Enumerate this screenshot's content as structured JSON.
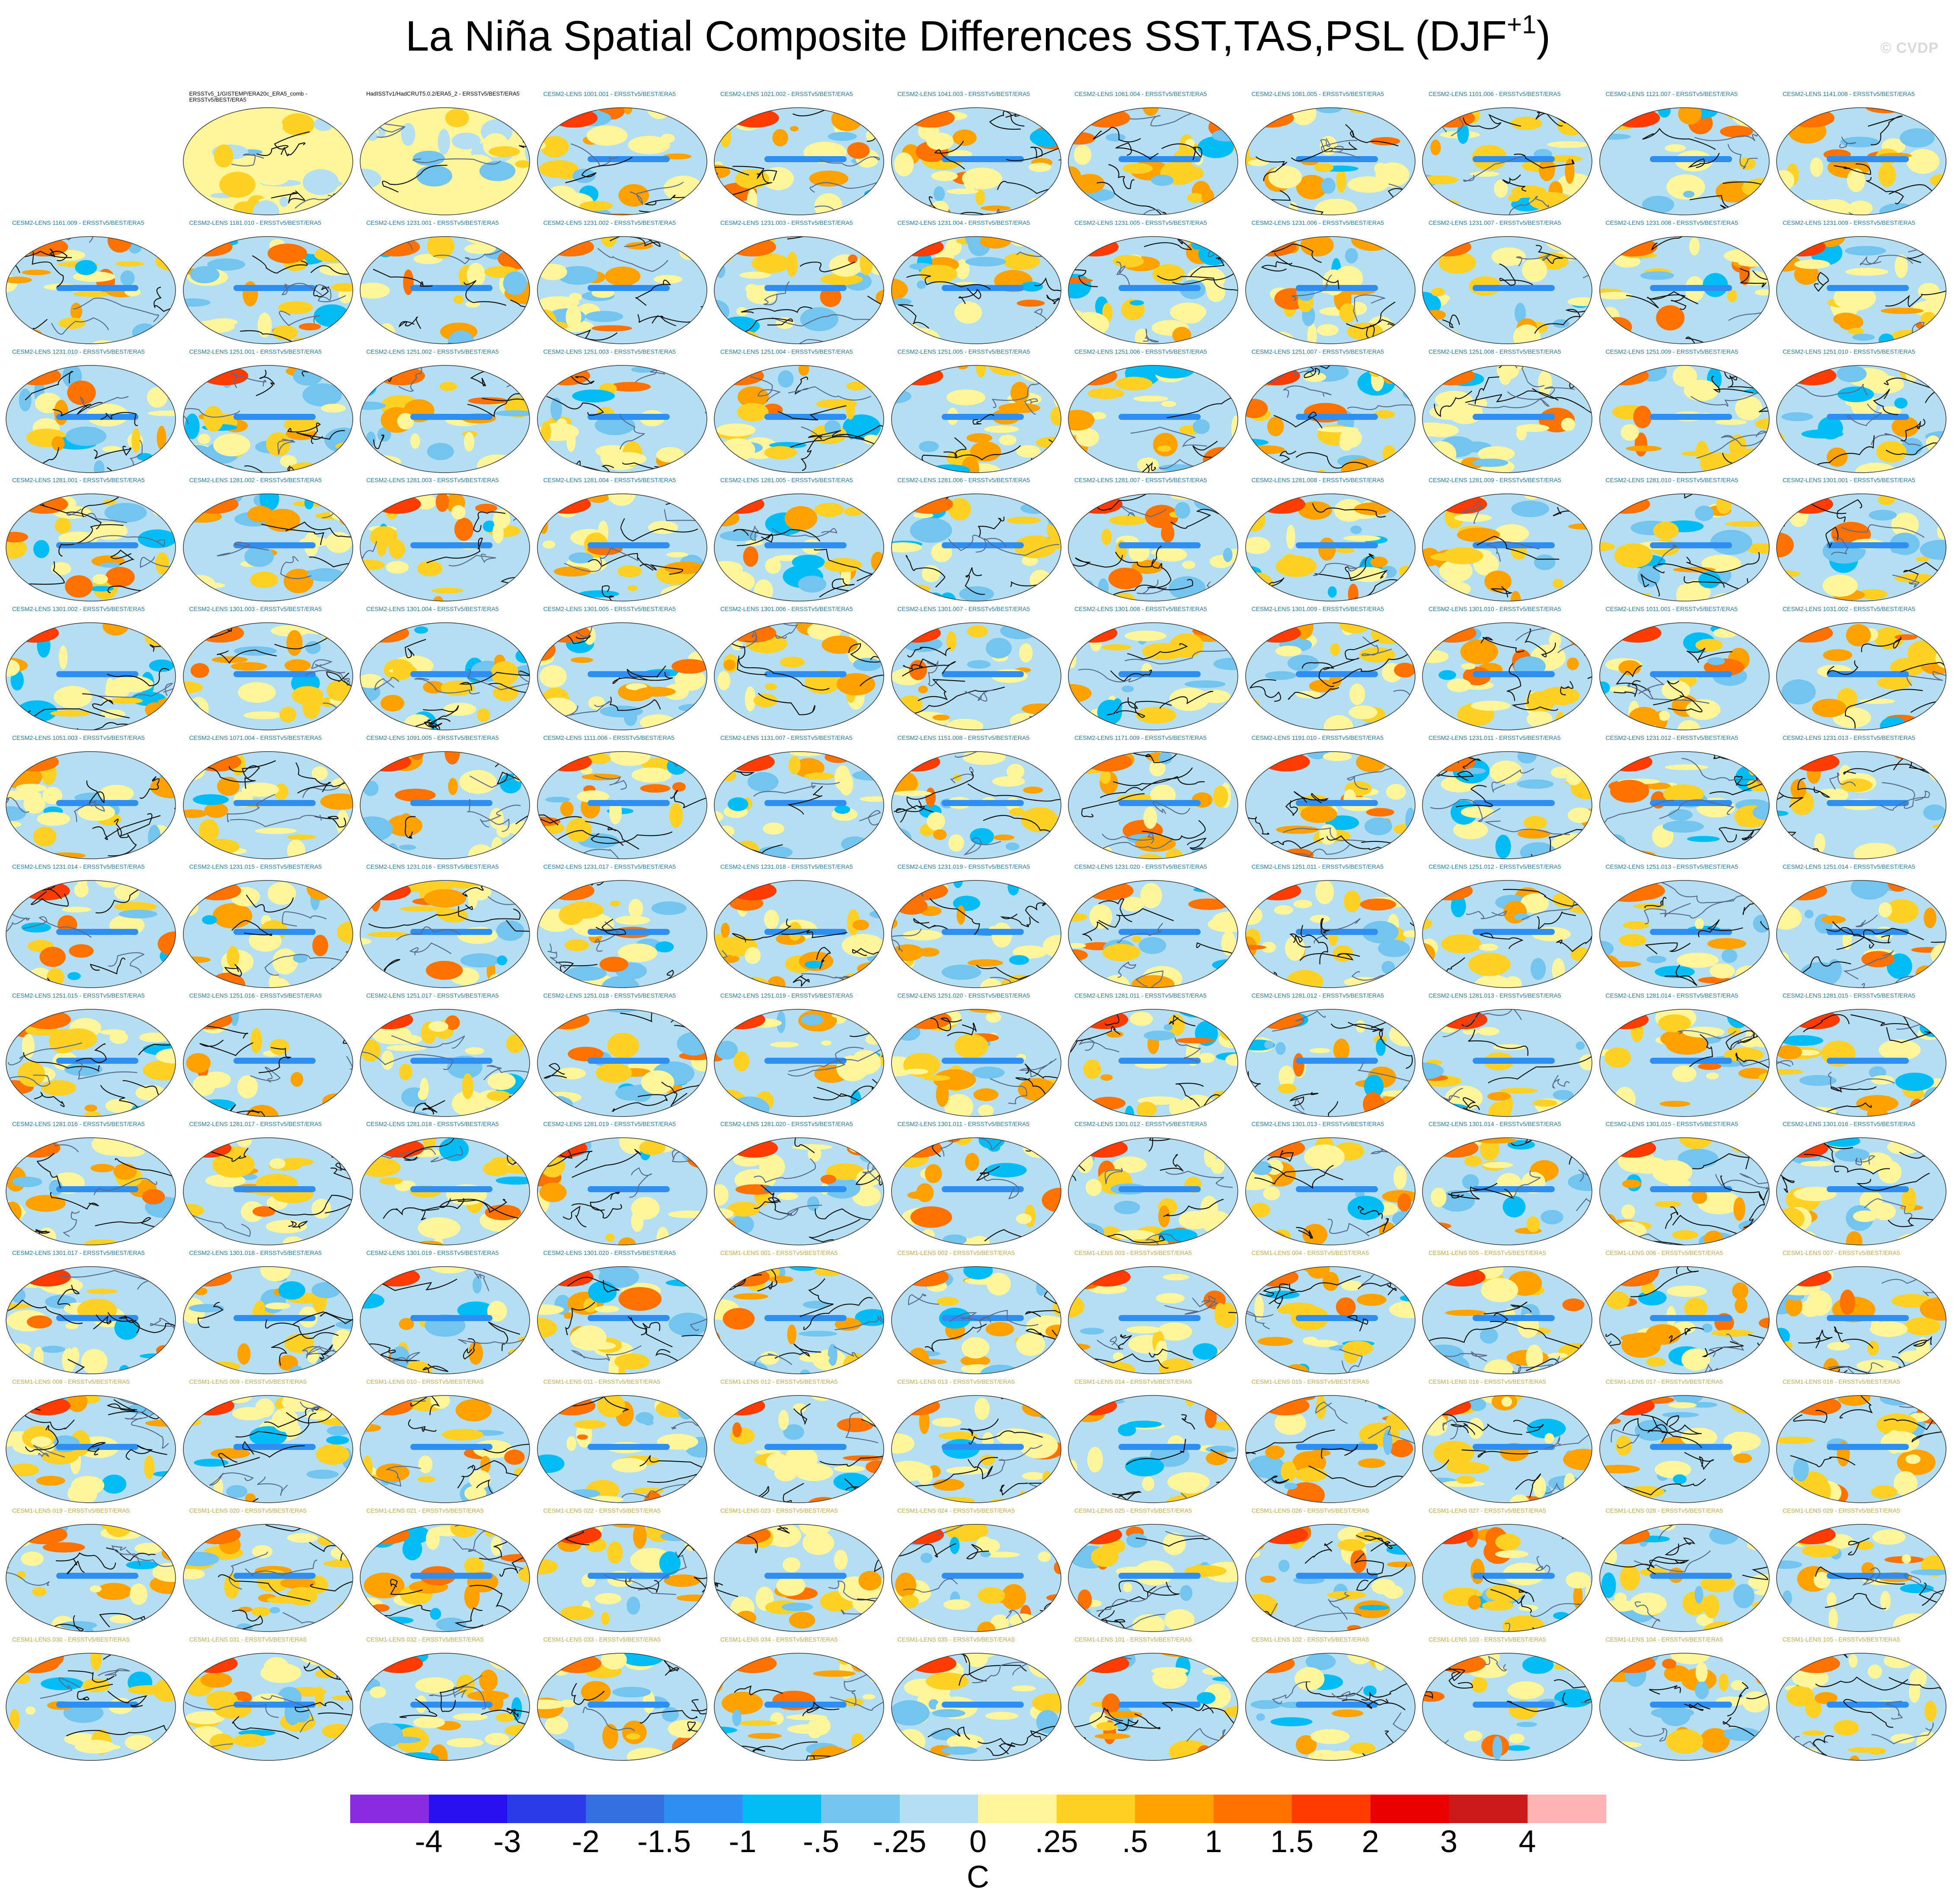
{
  "chart_data": {
    "type": "heatmap",
    "title": "La Niña Spatial Composite Differences SST,TAS,PSL (DJF",
    "title_superscript": "+1",
    "title_suffix": ")",
    "watermark": "© CVDP",
    "description_of_panels": "Grid of global map composites (11 columns x 13 rows), shaded SST/TAS differences with PSL contours",
    "panel_titles": [
      "ERSSTv5_1/GISTEMP/ERA20c_ERA5_comb - ERSSTv5/BEST/ERA5",
      "HadISSTv1/HadCRUT5.0.2/ERA5_2 - ERSSTv5/BEST/ERA5",
      "CESM2-LENS 1001.001 - ERSSTv5/BEST/ERA5",
      "CESM2-LENS 1021.002 - ERSSTv5/BEST/ERA5",
      "CESM2-LENS 1041.003 - ERSSTv5/BEST/ERA5",
      "CESM2-LENS 1061.004 - ERSSTv5/BEST/ERA5",
      "CESM2-LENS 1081.005 - ERSSTv5/BEST/ERA5",
      "CESM2-LENS 1101.006 - ERSSTv5/BEST/ERA5",
      "CESM2-LENS 1121.007 - ERSSTv5/BEST/ERA5",
      "CESM2-LENS 1141.008 - ERSSTv5/BEST/ERA5",
      "CESM2-LENS 1161.009 - ERSSTv5/BEST/ERA5",
      "CESM2-LENS 1181.010 - ERSSTv5/BEST/ERA5",
      "CESM2-LENS 1231.001 - ERSSTv5/BEST/ERA5",
      "CESM2-LENS 1231.002 - ERSSTv5/BEST/ERA5",
      "CESM2-LENS 1231.003 - ERSSTv5/BEST/ERA5",
      "CESM2-LENS 1231.004 - ERSSTv5/BEST/ERA5",
      "CESM2-LENS 1231.005 - ERSSTv5/BEST/ERA5",
      "CESM2-LENS 1231.006 - ERSSTv5/BEST/ERA5",
      "CESM2-LENS 1231.007 - ERSSTv5/BEST/ERA5",
      "CESM2-LENS 1231.008 - ERSSTv5/BEST/ERA5",
      "CESM2-LENS 1231.009 - ERSSTv5/BEST/ERA5",
      "CESM2-LENS 1231.010 - ERSSTv5/BEST/ERA5",
      "CESM2-LENS 1251.001 - ERSSTv5/BEST/ERA5",
      "CESM2-LENS 1251.002 - ERSSTv5/BEST/ERA5",
      "CESM2-LENS 1251.003 - ERSSTv5/BEST/ERA5",
      "CESM2-LENS 1251.004 - ERSSTv5/BEST/ERA5",
      "CESM2-LENS 1251.005 - ERSSTv5/BEST/ERA5",
      "CESM2-LENS 1251.006 - ERSSTv5/BEST/ERA5",
      "CESM2-LENS 1251.007 - ERSSTv5/BEST/ERA5",
      "CESM2-LENS 1251.008 - ERSSTv5/BEST/ERA5",
      "CESM2-LENS 1251.009 - ERSSTv5/BEST/ERA5",
      "CESM2-LENS 1251.010 - ERSSTv5/BEST/ERA5",
      "CESM2-LENS 1281.001 - ERSSTv5/BEST/ERA5",
      "CESM2-LENS 1281.002 - ERSSTv5/BEST/ERA5",
      "CESM2-LENS 1281.003 - ERSSTv5/BEST/ERA5",
      "CESM2-LENS 1281.004 - ERSSTv5/BEST/ERA5",
      "CESM2-LENS 1281.005 - ERSSTv5/BEST/ERA5",
      "CESM2-LENS 1281.006 - ERSSTv5/BEST/ERA5",
      "CESM2-LENS 1281.007 - ERSSTv5/BEST/ERA5",
      "CESM2-LENS 1281.008 - ERSSTv5/BEST/ERA5",
      "CESM2-LENS 1281.009 - ERSSTv5/BEST/ERA5",
      "CESM2-LENS 1281.010 - ERSSTv5/BEST/ERA5",
      "CESM2-LENS 1301.001 - ERSSTv5/BEST/ERA5",
      "CESM2-LENS 1301.002 - ERSSTv5/BEST/ERA5",
      "CESM2-LENS 1301.003 - ERSSTv5/BEST/ERA5",
      "CESM2-LENS 1301.004 - ERSSTv5/BEST/ERA5",
      "CESM2-LENS 1301.005 - ERSSTv5/BEST/ERA5",
      "CESM2-LENS 1301.006 - ERSSTv5/BEST/ERA5",
      "CESM2-LENS 1301.007 - ERSSTv5/BEST/ERA5",
      "CESM2-LENS 1301.008 - ERSSTv5/BEST/ERA5",
      "CESM2-LENS 1301.009 - ERSSTv5/BEST/ERA5",
      "CESM2-LENS 1301.010 - ERSSTv5/BEST/ERA5",
      "CESM2-LENS 1011.001 - ERSSTv5/BEST/ERA5",
      "CESM2-LENS 1031.002 - ERSSTv5/BEST/ERA5",
      "CESM2-LENS 1051.003 - ERSSTv5/BEST/ERA5",
      "CESM2-LENS 1071.004 - ERSSTv5/BEST/ERA5",
      "CESM2-LENS 1091.005 - ERSSTv5/BEST/ERA5",
      "CESM2-LENS 1111.006 - ERSSTv5/BEST/ERA5",
      "CESM2-LENS 1131.007 - ERSSTv5/BEST/ERA5",
      "CESM2-LENS 1151.008 - ERSSTv5/BEST/ERA5",
      "CESM2-LENS 1171.009 - ERSSTv5/BEST/ERA5",
      "CESM2-LENS 1191.010 - ERSSTv5/BEST/ERA5",
      "CESM2-LENS 1231.011 - ERSSTv5/BEST/ERA5",
      "CESM2-LENS 1231.012 - ERSSTv5/BEST/ERA5",
      "CESM2-LENS 1231.013 - ERSSTv5/BEST/ERA5",
      "CESM2-LENS 1231.014 - ERSSTv5/BEST/ERA5",
      "CESM2-LENS 1231.015 - ERSSTv5/BEST/ERA5",
      "CESM2-LENS 1231.016 - ERSSTv5/BEST/ERA5",
      "CESM2-LENS 1231.017 - ERSSTv5/BEST/ERA5",
      "CESM2-LENS 1231.018 - ERSSTv5/BEST/ERA5",
      "CESM2-LENS 1231.019 - ERSSTv5/BEST/ERA5",
      "CESM2-LENS 1231.020 - ERSSTv5/BEST/ERA5",
      "CESM2-LENS 1251.011 - ERSSTv5/BEST/ERA5",
      "CESM2-LENS 1251.012 - ERSSTv5/BEST/ERA5",
      "CESM2-LENS 1251.013 - ERSSTv5/BEST/ERA5",
      "CESM2-LENS 1251.014 - ERSSTv5/BEST/ERA5",
      "CESM2-LENS 1251.015 - ERSSTv5/BEST/ERA5",
      "CESM2-LENS 1251.016 - ERSSTv5/BEST/ERA5",
      "CESM2-LENS 1251.017 - ERSSTv5/BEST/ERA5",
      "CESM2-LENS 1251.018 - ERSSTv5/BEST/ERA5",
      "CESM2-LENS 1251.019 - ERSSTv5/BEST/ERA5",
      "CESM2-LENS 1251.020 - ERSSTv5/BEST/ERA5",
      "CESM2-LENS 1281.011 - ERSSTv5/BEST/ERA5",
      "CESM2-LENS 1281.012 - ERSSTv5/BEST/ERA5",
      "CESM2-LENS 1281.013 - ERSSTv5/BEST/ERA5",
      "CESM2-LENS 1281.014 - ERSSTv5/BEST/ERA5",
      "CESM2-LENS 1281.015 - ERSSTv5/BEST/ERA5",
      "CESM2-LENS 1281.016 - ERSSTv5/BEST/ERA5",
      "CESM2-LENS 1281.017 - ERSSTv5/BEST/ERA5",
      "CESM2-LENS 1281.018 - ERSSTv5/BEST/ERA5",
      "CESM2-LENS 1281.019 - ERSSTv5/BEST/ERA5",
      "CESM2-LENS 1281.020 - ERSSTv5/BEST/ERA5",
      "CESM2-LENS 1301.011 - ERSSTv5/BEST/ERA5",
      "CESM2-LENS 1301.012 - ERSSTv5/BEST/ERA5",
      "CESM2-LENS 1301.013 - ERSSTv5/BEST/ERA5",
      "CESM2-LENS 1301.014 - ERSSTv5/BEST/ERA5",
      "CESM2-LENS 1301.015 - ERSSTv5/BEST/ERA5",
      "CESM2-LENS 1301.016 - ERSSTv5/BEST/ERA5",
      "CESM2-LENS 1301.017 - ERSSTv5/BEST/ERA5",
      "CESM2-LENS 1301.018 - ERSSTv5/BEST/ERA5",
      "CESM2-LENS 1301.019 - ERSSTv5/BEST/ERA5",
      "CESM2-LENS 1301.020 - ERSSTv5/BEST/ERA5",
      "CESM1-LENS 001 - ERSSTv5/BEST/ERA5",
      "CESM1-LENS 002 - ERSSTv5/BEST/ERA5",
      "CESM1-LENS 003 - ERSSTv5/BEST/ERA5",
      "CESM1-LENS 004 - ERSSTv5/BEST/ERA5",
      "CESM1-LENS 005 - ERSSTv5/BEST/ERA5",
      "CESM1-LENS 006 - ERSSTv5/BEST/ERA5",
      "CESM1-LENS 007 - ERSSTv5/BEST/ERA5",
      "CESM1-LENS 008 - ERSSTv5/BEST/ERA5",
      "CESM1-LENS 009 - ERSSTv5/BEST/ERA5",
      "CESM1-LENS 010 - ERSSTv5/BEST/ERA5",
      "CESM1-LENS 011 - ERSSTv5/BEST/ERA5",
      "CESM1-LENS 012 - ERSSTv5/BEST/ERA5",
      "CESM1-LENS 013 - ERSSTv5/BEST/ERA5",
      "CESM1-LENS 014 - ERSSTv5/BEST/ERA5",
      "CESM1-LENS 015 - ERSSTv5/BEST/ERA5",
      "CESM1-LENS 016 - ERSSTv5/BEST/ERA5",
      "CESM1-LENS 017 - ERSSTv5/BEST/ERA5",
      "CESM1-LENS 018 - ERSSTv5/BEST/ERA5",
      "CESM1-LENS 019 - ERSSTv5/BEST/ERA5",
      "CESM1-LENS 020 - ERSSTv5/BEST/ERA5",
      "CESM1-LENS 021 - ERSSTv5/BEST/ERA5",
      "CESM1-LENS 022 - ERSSTv5/BEST/ERA5",
      "CESM1-LENS 023 - ERSSTv5/BEST/ERA5",
      "CESM1-LENS 024 - ERSSTv5/BEST/ERA5",
      "CESM1-LENS 025 - ERSSTv5/BEST/ERA5",
      "CESM1-LENS 026 - ERSSTv5/BEST/ERA5",
      "CESM1-LENS 027 - ERSSTv5/BEST/ERA5",
      "CESM1-LENS 028 - ERSSTv5/BEST/ERA5",
      "CESM1-LENS 029 - ERSSTv5/BEST/ERA5",
      "CESM1-LENS 030 - ERSSTv5/BEST/ERA5",
      "CESM1-LENS 031 - ERSSTv5/BEST/ERA5",
      "CESM1-LENS 032 - ERSSTv5/BEST/ERA5",
      "CESM1-LENS 033 - ERSSTv5/BEST/ERA5",
      "CESM1-LENS 034 - ERSSTv5/BEST/ERA5",
      "CESM1-LENS 035 - ERSSTv5/BEST/ERA5",
      "CESM1-LENS 101 - ERSSTv5/BEST/ERA5",
      "CESM1-LENS 102 - ERSSTv5/BEST/ERA5",
      "CESM1-LENS 103 - ERSSTv5/BEST/ERA5",
      "CESM1-LENS 104 - ERSSTv5/BEST/ERA5",
      "CESM1-LENS 105 - ERSSTv5/BEST/ERA5"
    ],
    "colorbar": {
      "colors": [
        "#8a2be2",
        "#2810ef",
        "#2a3ce8",
        "#3470e0",
        "#2e8ef2",
        "#02bcf6",
        "#73c5ef",
        "#b4dff2",
        "#fff59a",
        "#ffd124",
        "#ffa200",
        "#ff7200",
        "#ff3c00",
        "#ea0000",
        "#cc1a1a",
        "#ffb3b3"
      ],
      "tick_labels": [
        "-4",
        "-3",
        "-2",
        "-1.5",
        "-1",
        "-.5",
        "-.25",
        "0",
        ".25",
        ".5",
        "1",
        "1.5",
        "2",
        "3",
        "4"
      ],
      "unit": "C"
    }
  }
}
